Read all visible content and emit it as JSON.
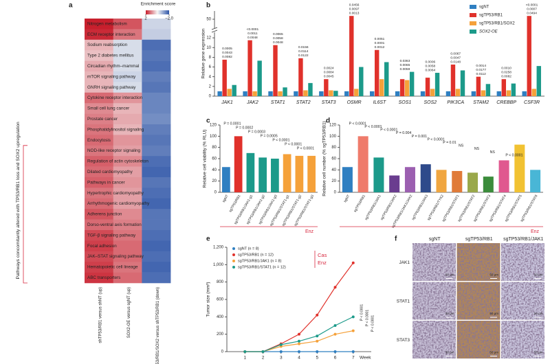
{
  "chart_data": [
    {
      "type": "heatmap",
      "panel": "a",
      "colorbar_title": "Enrichment score",
      "zlim": [
        -2,
        2
      ],
      "colorbar_ticks": [
        2,
        {
          "value": -2,
          "label": "−2.0"
        }
      ],
      "cmap": [
        "#2f56a8",
        "#f5f5f5",
        "#c81f2d"
      ],
      "rows": [
        "Nitrogen metabolism",
        "ECM receptor interaction",
        "Sodium reabsorption",
        "Type 2 diabetes mellitus",
        "Circadian rhythm–mammal",
        "mTOR signaling pathway",
        "GNRH signaling pathway",
        "Cytokine receptor interaction",
        "Small cell lung cancer",
        "Prostate cancer",
        "Phosphatidylinositol signaling",
        "Endocytosis",
        "NOD-like receptor signaling",
        "Regulation of actin cytoskeleton",
        "Dilated cardiomyopathy",
        "Pathways in cancer",
        "Hypertrophic cardiomyopathy",
        "Arrhythmogenic cardiomyopathy",
        "Adherens junction",
        "Dorso-ventral axis formation",
        "TGF-β signaling pathway",
        "Focal adhesion",
        "JAK–STAT signaling pathway",
        "Hematopoietic cell lineage",
        "ABC transporters"
      ],
      "columns": [
        "shTP53/RB1 versus shNT (up)",
        "SOX2-OE versus sgNT (up)",
        "shTP53/RB1/SOX2 versus shTP53/RB1 (down)"
      ],
      "values": [
        [
          2.0,
          1.5,
          -0.4
        ],
        [
          1.9,
          1.2,
          -0.5
        ],
        [
          0.6,
          -0.3,
          -1.7
        ],
        [
          0.5,
          -0.3,
          -1.6
        ],
        [
          0.7,
          -0.3,
          -1.7
        ],
        [
          0.6,
          -0.4,
          -1.5
        ],
        [
          0.6,
          -0.3,
          -1.6
        ],
        [
          1.3,
          0.9,
          -1.4
        ],
        [
          1.0,
          0.6,
          -1.4
        ],
        [
          1.1,
          0.7,
          -1.3
        ],
        [
          1.2,
          0.6,
          -1.5
        ],
        [
          1.3,
          0.9,
          -1.6
        ],
        [
          1.2,
          0.8,
          -1.5
        ],
        [
          1.4,
          1.0,
          -1.7
        ],
        [
          1.3,
          0.8,
          -1.8
        ],
        [
          1.4,
          0.9,
          -1.6
        ],
        [
          1.2,
          0.8,
          -1.7
        ],
        [
          1.3,
          0.8,
          -1.8
        ],
        [
          1.5,
          1.0,
          -1.6
        ],
        [
          1.3,
          1.1,
          -1.6
        ],
        [
          1.6,
          1.2,
          -1.7
        ],
        [
          1.7,
          1.3,
          -1.8
        ],
        [
          1.6,
          1.3,
          -1.7
        ],
        [
          1.7,
          1.2,
          -1.8
        ],
        [
          1.8,
          1.3,
          -1.7
        ]
      ],
      "highlight_row": 22,
      "highlight_color": "#d7263d",
      "side_label": "Pathways concomitantly altered with TP53/RB1 loss and SOX2 upregulation"
    },
    {
      "type": "grouped_bar",
      "panel": "b",
      "ylabel": "Relative gene expression",
      "categories": [
        "JAK1",
        "JAK2",
        "STAT1",
        "STAT2",
        "STAT3",
        "OSMR",
        "IL6ST",
        "SOS1",
        "SOS2",
        "PIK3CA",
        "STAM2",
        "CREBBP",
        "CSF3R"
      ],
      "series": [
        {
          "name": "sgNT",
          "color": "#2f7fc1",
          "values": [
            1,
            1,
            1,
            1,
            1,
            1,
            1,
            1,
            1,
            1,
            1,
            1,
            1
          ]
        },
        {
          "name": "sgTP53/RB1",
          "color": "#e0312b",
          "values": [
            7.5,
            11.5,
            10.5,
            7.8,
            3.5,
            52,
            9.5,
            3.5,
            3.8,
            6.5,
            4,
            3.5,
            52
          ]
        },
        {
          "name": "sgTP53/RB1/SOX2",
          "color": "#f5a13a",
          "values": [
            1.5,
            1.0,
            1.0,
            1.2,
            1.2,
            1.5,
            3.5,
            3.3,
            1.5,
            1.5,
            1.2,
            1.2,
            1.5
          ]
        },
        {
          "name": "SOX2-OE",
          "color": "#1c9a8a",
          "values": [
            2.3,
            7.3,
            1.8,
            2.7,
            1.1,
            6,
            7,
            5,
            4.8,
            5.3,
            2.5,
            2.6,
            6.2
          ]
        }
      ],
      "ylim": [
        0,
        55
      ],
      "axis_break": [
        13,
        45
      ],
      "yticks": [
        0,
        2,
        4,
        6,
        8,
        10,
        12,
        50
      ],
      "legend": "upper right",
      "pvalues": [
        [
          "0.0005",
          "0.0043",
          "0.0082"
        ],
        [
          "<0.0001",
          "0.0011",
          "0.0048"
        ],
        [
          "0.0065",
          "0.0058",
          "0.0048"
        ],
        [
          "0.0156",
          "0.0114",
          "0.0122"
        ],
        [
          "0.0024",
          "0.0084",
          "0.0045"
        ],
        [
          "0.0456",
          "0.0097",
          "0.0013"
        ],
        [
          "0.0051",
          "0.0001",
          "0.0012"
        ],
        [
          "0.0363",
          "0.0065",
          "0.0059"
        ],
        [
          "0.0006",
          "0.0058",
          "0.0064"
        ],
        [
          "0.0067",
          "0.0047",
          "0.0148"
        ],
        [
          "0.0014",
          "0.0177",
          "0.0112"
        ],
        [
          "0.0010",
          "0.0258",
          "0.0082"
        ],
        [
          "<0.0001",
          "0.0007",
          "0.0494"
        ]
      ]
    },
    {
      "type": "bar",
      "panel": "c",
      "ylabel": "Relative cell viability (% RLU)",
      "categories": [
        "sgNT",
        "sgTP53/RB1",
        "sgTP53/RB1/JAK1-g1",
        "sgTP53/RB1/JAK1-g2",
        "sgTP53/RB1/JAK1-g3",
        "sgTP53/RB1/STAT1-g1",
        "sgTP53/RB1/STAT1-g2",
        "sgTP53/RB1/STAT1-g3"
      ],
      "values": [
        45,
        100,
        70,
        62,
        60,
        68,
        65,
        65
      ],
      "colors": [
        "#2f7fc1",
        "#e0312b",
        "#1c9a8a",
        "#1c9a8a",
        "#1c9a8a",
        "#f5a13a",
        "#f5a13a",
        "#f5a13a"
      ],
      "ylim": [
        0,
        120
      ],
      "yticks": [
        0,
        20,
        40,
        60,
        80,
        100,
        120
      ],
      "color_labels": false,
      "annotations": [
        "P = 0.0001",
        "P = 0.0002",
        "P = 0.0003",
        "P = 0.0005",
        "P < 0.0001",
        "P < 0.0001",
        "P < 0.0001"
      ],
      "treatment": "Enz"
    },
    {
      "type": "bar",
      "panel": "d",
      "ylabel": "Relative cell number (% sgTP53/RB1)",
      "categories": [
        "sgNT",
        "sgTP53/RB1",
        "sgTP53/RB1/JAK1",
        "sgTP53/RB1/JAK2",
        "sgTP53/RB1/JAK1/JAK2",
        "sgTP53/RB1/JAK3",
        "sgTP53/RB1/TYK2",
        "sgTP53/RB1/STAT1",
        "sgTP53/RB1/STAT2",
        "sgTP53/RB1/STAT3",
        "sgTP53/RB1/STAT4",
        "sgTP53/RB1/STAT5",
        "sgTP53/RB1/STAT6"
      ],
      "values": [
        45,
        100,
        62,
        30,
        45,
        50,
        40,
        38,
        35,
        28,
        57,
        85,
        40
      ],
      "colors": [
        "#2f7fc1",
        "#ef7b6b",
        "#1c9a8a",
        "#6a3d8f",
        "#9b5fb0",
        "#2e4a8b",
        "#f0a640",
        "#e07b39",
        "#9aa84a",
        "#3b8c3b",
        "#e0588f",
        "#f1c232",
        "#49b6d6"
      ],
      "ylim": [
        0,
        120
      ],
      "yticks": [
        0,
        20,
        40,
        60,
        80,
        100,
        120
      ],
      "color_labels": true,
      "annotations": [
        "P < 0.0001",
        "P < 0.0001",
        "P < 0.0001",
        "P = 0.004",
        "P = 0.001",
        "P < 0.0001",
        "P = 0.01",
        "NS",
        "NS",
        "NS",
        "P < 0.0001"
      ],
      "treatment": "Enz"
    },
    {
      "type": "line",
      "panel": "e",
      "ylabel": "Tumor size (mm³)",
      "xlabel": "Week",
      "x": [
        1,
        2,
        3,
        4,
        5,
        6,
        7
      ],
      "xlim": [
        0,
        8
      ],
      "xticks": [
        1,
        2,
        3,
        4,
        5,
        6,
        7
      ],
      "ylim": [
        0,
        1200
      ],
      "yticks": [
        0,
        200,
        400,
        600,
        800,
        {
          "value": 1000,
          "label": "1,000"
        },
        {
          "value": 1200,
          "label": "1,200"
        }
      ],
      "series": [
        {
          "name": "sgNT (n = 8)",
          "color": "#2f7fc1",
          "values": [
            0,
            0,
            0,
            0,
            0,
            0,
            0
          ]
        },
        {
          "name": "sgTP53/RB1 (n = 12)",
          "color": "#e0312b",
          "values": [
            0,
            0,
            90,
            200,
            420,
            740,
            1020
          ]
        },
        {
          "name": "sgTP53/RB1/JAK1 (n = 8)",
          "color": "#f5a13a",
          "values": [
            0,
            0,
            60,
            90,
            120,
            200,
            240
          ]
        },
        {
          "name": "sgTP53/RB1/STAT1 (n = 12)",
          "color": "#1c9a8a",
          "values": [
            0,
            0,
            80,
            120,
            180,
            300,
            400
          ]
        }
      ],
      "treatments": [
        "Cas",
        "Enz"
      ],
      "annotations": [
        "P < 0.0001",
        "P < 0.0001",
        "P < 0.0001"
      ]
    },
    {
      "type": "images",
      "panel": "f",
      "columns": [
        "sgNT",
        "sgTP53/RB1",
        "sgTP53/RB1/JAK1"
      ],
      "rows": [
        "JAK1",
        "STAT1",
        "STAT3"
      ],
      "scale_label": "50 μm"
    }
  ]
}
